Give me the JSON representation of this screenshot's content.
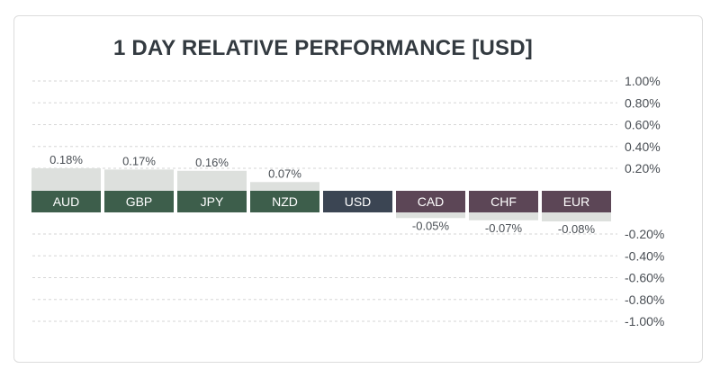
{
  "chart_data": {
    "type": "bar",
    "title": "1 DAY RELATIVE PERFORMANCE  [USD]",
    "categories": [
      "AUD",
      "GBP",
      "JPY",
      "NZD",
      "USD",
      "CAD",
      "CHF",
      "EUR"
    ],
    "values": [
      0.18,
      0.17,
      0.16,
      0.07,
      0,
      -0.05,
      -0.07,
      -0.08
    ],
    "value_labels": [
      "0.18%",
      "0.17%",
      "0.16%",
      "0.07%",
      "",
      "-0.05%",
      "-0.07%",
      "-0.08%"
    ],
    "yticks_positive": [
      {
        "value": 1.0,
        "label": "1.00%"
      },
      {
        "value": 0.8,
        "label": "0.80%"
      },
      {
        "value": 0.6,
        "label": "0.60%"
      },
      {
        "value": 0.4,
        "label": "0.40%"
      },
      {
        "value": 0.2,
        "label": "0.20%"
      }
    ],
    "yticks_negative": [
      {
        "value": -0.2,
        "label": "-0.20%"
      },
      {
        "value": -0.4,
        "label": "-0.40%"
      },
      {
        "value": -0.6,
        "label": "-0.60%"
      },
      {
        "value": -0.8,
        "label": "-0.80%"
      },
      {
        "value": -1.0,
        "label": "-1.00%"
      }
    ],
    "ylim": [
      -1,
      1
    ],
    "grid": true,
    "colors": {
      "positive_tile": "#3d5e4b",
      "neutral_tile": "#3b4553",
      "negative_tile": "#5c4656",
      "bar_fill": "#dde0dd",
      "grid": "#d6d6d6"
    }
  }
}
